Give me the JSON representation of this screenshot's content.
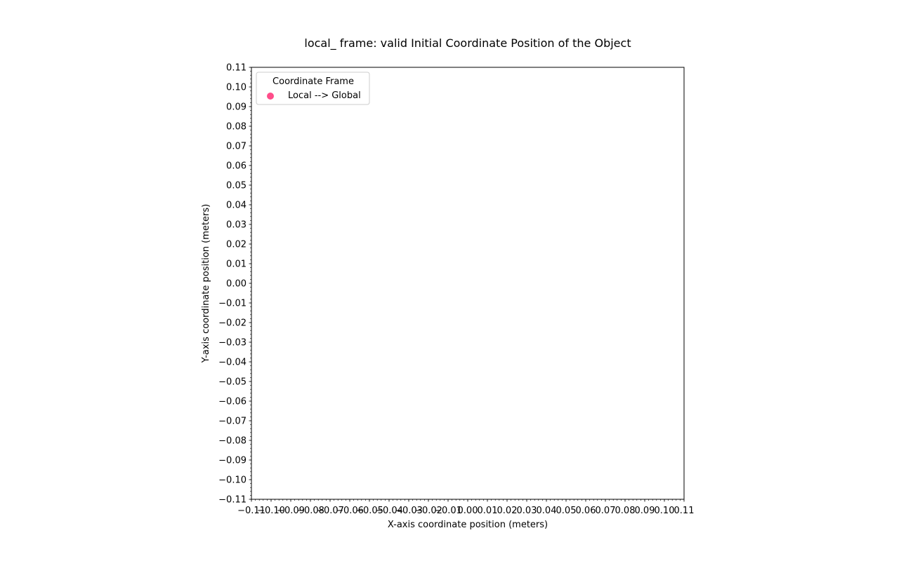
{
  "chart_data": {
    "type": "scatter",
    "title": "local_ frame: valid Initial Coordinate Position of the Object",
    "xlabel": "X-axis coordinate position (meters)",
    "ylabel": "Y-axis coordinate position (meters)",
    "xlim": [
      -0.11,
      0.11
    ],
    "ylim": [
      -0.11,
      0.11
    ],
    "major_step": 0.01,
    "minor_step": 0.002,
    "x_ticks": [
      "−0.11",
      "−0.10",
      "−0.09",
      "−0.08",
      "−0.07",
      "−0.06",
      "−0.05",
      "−0.04",
      "−0.03",
      "−0.02",
      "−0.01",
      "0.00",
      "0.01",
      "0.02",
      "0.03",
      "0.04",
      "0.05",
      "0.06",
      "0.07",
      "0.08",
      "0.09",
      "0.10",
      "0.11"
    ],
    "y_ticks": [
      "−0.11",
      "−0.10",
      "−0.09",
      "−0.08",
      "−0.07",
      "−0.06",
      "−0.05",
      "−0.04",
      "−0.03",
      "−0.02",
      "−0.01",
      "0.00",
      "0.01",
      "0.02",
      "0.03",
      "0.04",
      "0.05",
      "0.06",
      "0.07",
      "0.08",
      "0.09",
      "0.10",
      "0.11"
    ],
    "grid": false,
    "legend": {
      "title": "Coordinate Frame",
      "placement": "top-left"
    },
    "series": [
      {
        "name": "Local --> Global",
        "color": "#ff4d8a",
        "marker": "circle",
        "points": []
      }
    ]
  }
}
